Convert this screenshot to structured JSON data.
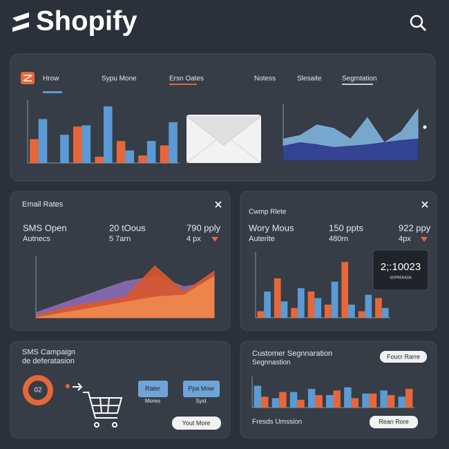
{
  "header": {
    "logo": "Shopify"
  },
  "tabs": [
    "Hrow",
    "Sypu Mone",
    "Ersn Oates",
    "Notess",
    "Slesaite",
    "Segmtation"
  ],
  "email_panel": {
    "title": "Email Rates",
    "rows": [
      [
        "SMS Open",
        "20 tOous",
        "790 pply"
      ],
      [
        "Autnecs",
        "5 7arn",
        "4 px"
      ]
    ]
  },
  "camp_panel": {
    "title": "Cwmp Rlete",
    "rows": [
      [
        "Wory Mous",
        "150 ppts",
        "922 ppy"
      ],
      [
        "Auterite",
        "480rn",
        "4px"
      ]
    ],
    "badge": {
      "value": "2;:10023",
      "caption": "SOPRERADA"
    }
  },
  "sms_panel": {
    "title": "SMS Campaign",
    "subtitle": "de deferatasion",
    "donut": "02",
    "buttons": [
      {
        "label": "Rater",
        "caption": "Mores"
      },
      {
        "label": "Ppa Mow",
        "caption": "Syst"
      }
    ],
    "action": "Yout More"
  },
  "segment_panel": {
    "title": "Customer Segnnaration",
    "subtitle": "Segnnastion",
    "top_button": "Foucr Rarre",
    "footer": "Fresds Umssion",
    "action": "Rean Rore"
  },
  "charts": {
    "top_bar": {
      "type": "bar",
      "ylim": [
        0,
        100
      ],
      "series": [
        {
          "color": "#e8673a",
          "values": [
            38,
            0,
            58,
            10,
            35,
            12,
            28
          ]
        },
        {
          "color": "#5b9bd5",
          "values": [
            70,
            45,
            60,
            90,
            20,
            35,
            65
          ]
        }
      ]
    },
    "top_area": {
      "type": "area",
      "ylim": [
        0,
        80
      ],
      "series": [
        {
          "color": "#7fb3dc",
          "values": [
            30,
            35,
            50,
            45,
            30,
            60,
            25,
            40,
            72
          ]
        },
        {
          "color": "#2c3a8c",
          "values": [
            20,
            25,
            22,
            18,
            20,
            22,
            25,
            28,
            30
          ]
        }
      ]
    },
    "email_area": {
      "type": "area",
      "ylim": [
        0,
        60
      ],
      "series": [
        {
          "color": "#8a6bb5",
          "values": [
            5,
            15,
            25,
            35,
            40,
            30,
            35
          ]
        },
        {
          "color": "#d9582b",
          "values": [
            2,
            10,
            15,
            20,
            50,
            25,
            45
          ]
        },
        {
          "color": "#f0884e",
          "values": [
            0,
            5,
            10,
            15,
            20,
            22,
            40
          ]
        }
      ]
    },
    "camp_bar": {
      "type": "bar",
      "ylim": [
        0,
        100
      ],
      "series": [
        {
          "color": "#e8673a",
          "values": [
            10,
            60,
            15,
            40,
            20,
            85,
            10,
            30
          ]
        },
        {
          "color": "#5b9bd5",
          "values": [
            40,
            25,
            45,
            30,
            55,
            20,
            35,
            15
          ]
        }
      ]
    },
    "segment_bar": {
      "type": "bar",
      "ylim": [
        0,
        100
      ],
      "series": [
        {
          "color": "#5b9bd5",
          "values": [
            70,
            30,
            50,
            60,
            40,
            65,
            45,
            55,
            35
          ]
        },
        {
          "color": "#e8673a",
          "values": [
            35,
            50,
            25,
            40,
            55,
            30,
            45,
            40,
            60
          ]
        }
      ]
    }
  }
}
